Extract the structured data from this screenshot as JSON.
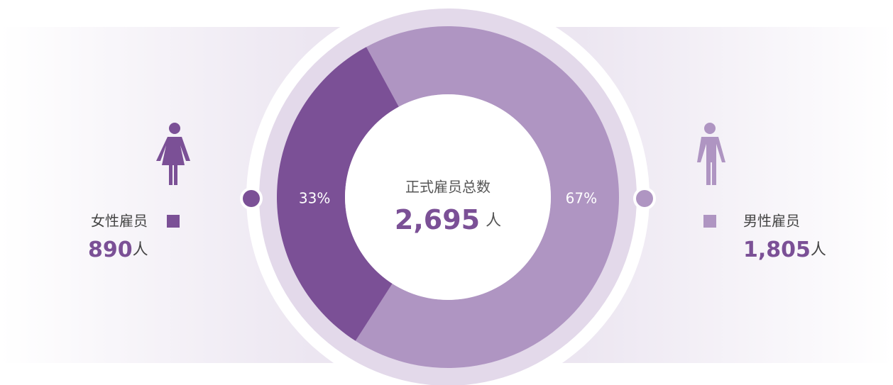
{
  "chart_data": {
    "type": "donut",
    "center_title": "正式雇员总数",
    "total": {
      "value": 2695,
      "label": "2,695"
    },
    "unit": "人",
    "categories": [
      "女性雇员",
      "男性雇员"
    ],
    "values": [
      33,
      67
    ],
    "value_labels": [
      "33%",
      "67%"
    ],
    "counts": [
      890,
      1805
    ],
    "count_labels": [
      "890",
      "1,805"
    ],
    "colors": [
      "#7b5096",
      "#af95c2"
    ]
  }
}
